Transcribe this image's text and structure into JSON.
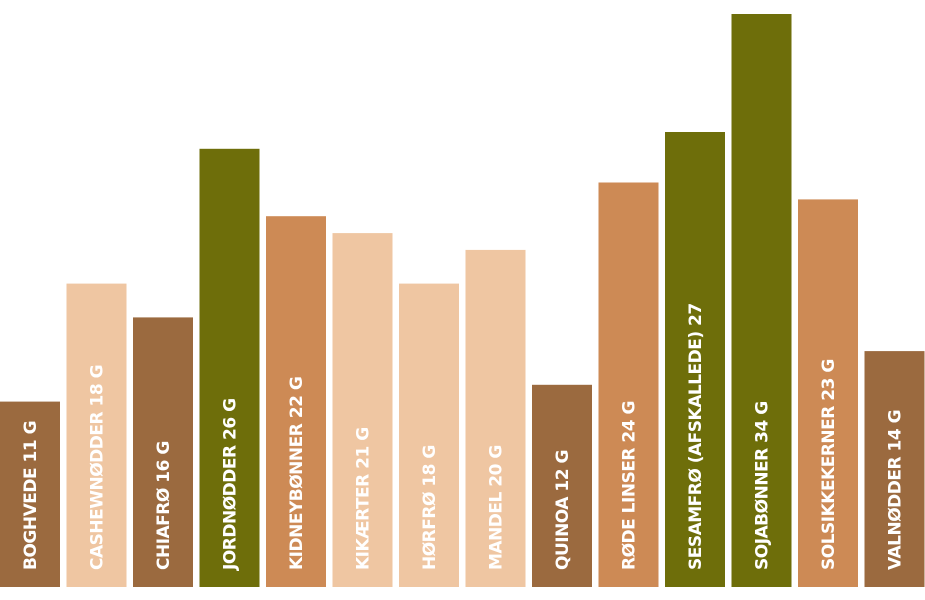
{
  "chart_data": {
    "type": "bar",
    "orientation": "vertical",
    "title": "",
    "xlabel": "",
    "ylabel": "",
    "ylim": [
      0,
      34
    ],
    "grid": false,
    "legend": "none",
    "categories": [
      "BOGHVEDE 11 G",
      "CASHEWNØDDER 18 G",
      "CHIAFRØ 16 G",
      "JORDNØDDER 26 G",
      "KIDNEYBØNNER 22 G",
      "KIKÆRTER 21 G",
      "HØRFRØ 18 G",
      "MANDEL 20 G",
      "QUINOA 12 G",
      "RØDE LINSER 24 G",
      "SESAMFRØ (AFSKALLEDE) 27",
      "SOJABØNNER 34 G",
      "SOLSIKKEKERNER 23 G",
      "VALNØDDER 14 G"
    ],
    "values": [
      11,
      18,
      16,
      26,
      22,
      21,
      18,
      20,
      12,
      24,
      27,
      34,
      23,
      14
    ],
    "bar_colors": [
      "#9b6a3f",
      "#efc6a2",
      "#9b6a3f",
      "#6e6e0a",
      "#cd8a55",
      "#efc6a2",
      "#efc6a2",
      "#efc6a2",
      "#9b6a3f",
      "#cd8a55",
      "#6e6e0a",
      "#6e6e0a",
      "#cd8a55",
      "#9b6a3f"
    ]
  }
}
